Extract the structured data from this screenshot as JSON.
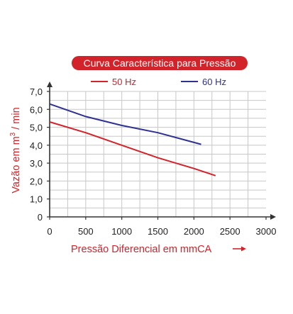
{
  "chart_data": {
    "type": "line",
    "title": "Curva Característica para Pressão",
    "xlabel": "Pressão Diferencial em mmCA",
    "ylabel": "Vazão em m³ / min",
    "ylabel_parts": {
      "before": "Vazão em m",
      "superscript": "3",
      "after": " / min"
    },
    "xlim": [
      0,
      3000
    ],
    "ylim": [
      0,
      7.0
    ],
    "x_ticks": [
      0,
      500,
      1000,
      1500,
      2000,
      2500,
      3000
    ],
    "x_tick_labels": [
      "0",
      "500",
      "1000",
      "1500",
      "2000",
      "2500",
      "3000"
    ],
    "y_ticks": [
      0,
      1,
      2,
      3,
      4,
      5,
      6,
      7
    ],
    "y_tick_labels": [
      "0",
      "1,0",
      "2,0",
      "3,0",
      "4,0",
      "5,0",
      "6,0",
      "7,0"
    ],
    "grid": true,
    "legend_position": "top",
    "series": [
      {
        "name": "50 Hz",
        "color": "#d2232a",
        "points": [
          [
            0,
            5.3
          ],
          [
            500,
            4.7
          ],
          [
            1000,
            4.0
          ],
          [
            1500,
            3.3
          ],
          [
            2000,
            2.7
          ],
          [
            2300,
            2.3
          ]
        ]
      },
      {
        "name": "60 Hz",
        "color": "#2e3192",
        "points": [
          [
            0,
            6.3
          ],
          [
            500,
            5.6
          ],
          [
            1000,
            5.1
          ],
          [
            1500,
            4.7
          ],
          [
            2100,
            4.05
          ]
        ]
      }
    ],
    "colors": {
      "axis": "#333333",
      "grid": "#c8c8c8",
      "label_red": "#d2232a",
      "title_bg": "#d2232a"
    }
  }
}
